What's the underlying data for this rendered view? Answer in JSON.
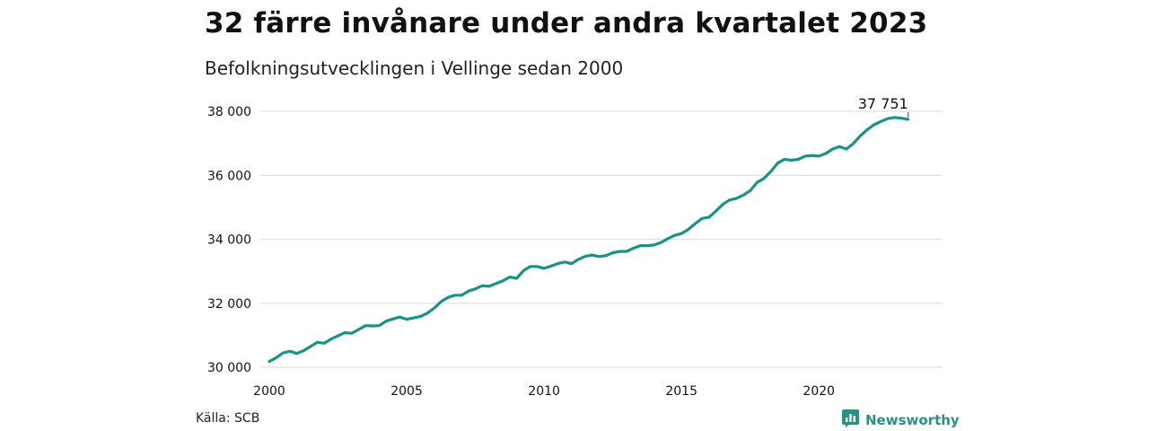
{
  "header": {
    "title": "32 färre invånare under andra kvartalet 2023",
    "subtitle": "Befolkningsutvecklingen i Vellinge sedan 2000"
  },
  "footer": {
    "source": "Källa: SCB",
    "brand": "Newsworthy",
    "brand_icon": "chart-bubble-icon"
  },
  "colors": {
    "line": "#1a9384",
    "grid": "#e2e2e2",
    "brand": "#2a9184"
  },
  "chart_data": {
    "type": "line",
    "title": "32 färre invånare under andra kvartalet 2023",
    "subtitle": "Befolkningsutvecklingen i Vellinge sedan 2000",
    "xlabel": "",
    "ylabel": "",
    "xlim": [
      2000.0,
      2024.5
    ],
    "ylim": [
      30000,
      38000
    ],
    "grid": "horizontal",
    "x_ticks": [
      2000,
      2005,
      2010,
      2015,
      2020
    ],
    "y_ticks": [
      30000,
      32000,
      34000,
      36000,
      38000
    ],
    "x_tick_labels": [
      "2000",
      "2005",
      "2010",
      "2015",
      "2020"
    ],
    "y_tick_labels": [
      "30 000",
      "32 000",
      "34 000",
      "36 000",
      "38 000"
    ],
    "end_label": "37 751",
    "series": [
      {
        "x": [
          2000.0,
          2000.25,
          2000.5,
          2000.75,
          2001.0,
          2001.25,
          2001.5,
          2001.75,
          2002.0,
          2002.25,
          2002.5,
          2002.75,
          2003.0,
          2003.25,
          2003.5,
          2003.75,
          2004.0,
          2004.25,
          2004.5,
          2004.75,
          2005.0,
          2005.25,
          2005.5,
          2005.75,
          2006.0,
          2006.25,
          2006.5,
          2006.75,
          2007.0,
          2007.25,
          2007.5,
          2007.75,
          2008.0,
          2008.25,
          2008.5,
          2008.75,
          2009.0,
          2009.25,
          2009.5,
          2009.75,
          2010.0,
          2010.25,
          2010.5,
          2010.75,
          2011.0,
          2011.25,
          2011.5,
          2011.75,
          2012.0,
          2012.25,
          2012.5,
          2012.75,
          2013.0,
          2013.25,
          2013.5,
          2013.75,
          2014.0,
          2014.25,
          2014.5,
          2014.75,
          2015.0,
          2015.25,
          2015.5,
          2015.75,
          2016.0,
          2016.25,
          2016.5,
          2016.75,
          2017.0,
          2017.25,
          2017.5,
          2017.75,
          2018.0,
          2018.25,
          2018.5,
          2018.75,
          2019.0,
          2019.25,
          2019.5,
          2019.75,
          2020.0,
          2020.25,
          2020.5,
          2020.75,
          2021.0,
          2021.25,
          2021.5,
          2021.75,
          2022.0,
          2022.25,
          2022.5,
          2022.75,
          2023.0,
          2023.25
        ],
        "values": [
          30180,
          30300,
          30450,
          30500,
          30430,
          30520,
          30650,
          30780,
          30750,
          30880,
          30980,
          31080,
          31060,
          31180,
          31300,
          31290,
          31300,
          31440,
          31510,
          31570,
          31500,
          31540,
          31590,
          31690,
          31850,
          32050,
          32180,
          32250,
          32250,
          32380,
          32450,
          32550,
          32530,
          32620,
          32700,
          32820,
          32780,
          33020,
          33150,
          33150,
          33090,
          33160,
          33240,
          33290,
          33240,
          33370,
          33470,
          33510,
          33460,
          33490,
          33580,
          33620,
          33620,
          33720,
          33800,
          33800,
          33820,
          33900,
          34020,
          34120,
          34180,
          34310,
          34490,
          34650,
          34690,
          34880,
          35090,
          35230,
          35280,
          35380,
          35520,
          35780,
          35900,
          36120,
          36380,
          36500,
          36470,
          36500,
          36600,
          36620,
          36600,
          36680,
          36820,
          36900,
          36820,
          36990,
          37230,
          37420,
          37580,
          37680,
          37770,
          37810,
          37783,
          37751
        ]
      }
    ]
  }
}
